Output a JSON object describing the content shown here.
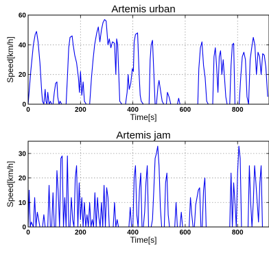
{
  "chart_data": [
    {
      "type": "line",
      "title": "Artemis urban",
      "xlabel": "Time[s]",
      "ylabel": "Speed[km/h]",
      "xlim": [
        0,
        920
      ],
      "ylim": [
        0,
        60
      ],
      "xticks": [
        0,
        200,
        400,
        600,
        800
      ],
      "yticks": [
        0,
        20,
        40,
        60
      ],
      "grid": true,
      "series": [
        {
          "color": "#0000ee",
          "x": [
            0,
            10,
            20,
            27,
            32,
            38,
            45,
            52,
            55,
            60,
            65,
            68,
            72,
            75,
            80,
            85,
            90,
            95,
            100,
            105,
            110,
            113,
            118,
            122,
            128,
            135,
            145,
            150,
            155,
            160,
            168,
            172,
            178,
            185,
            192,
            196,
            200,
            205,
            210,
            215,
            222,
            228,
            235,
            242,
            248,
            254,
            262,
            268,
            274,
            280,
            286,
            292,
            298,
            305,
            310,
            316,
            322,
            330,
            335,
            338,
            342,
            350,
            358,
            365,
            372,
            378,
            382,
            386,
            392,
            398,
            402,
            405,
            410,
            418,
            424,
            428,
            432,
            440,
            448,
            456,
            462,
            466,
            470,
            475,
            485,
            490,
            496,
            500,
            505,
            512,
            518,
            524,
            528,
            532,
            538,
            545,
            552,
            560,
            565,
            570,
            575,
            580,
            585,
            590,
            595,
            600,
            606,
            610,
            615,
            620,
            625,
            630,
            635,
            640,
            648,
            652,
            658,
            664,
            670,
            676,
            682,
            688,
            695,
            700,
            705,
            710,
            715,
            720,
            725,
            730,
            735,
            740,
            745,
            750,
            755,
            760,
            765,
            770,
            775,
            780,
            785,
            790,
            796,
            802,
            806,
            812,
            818,
            824,
            830,
            836,
            842,
            848,
            854,
            860,
            866,
            872,
            878,
            884,
            890,
            896,
            902,
            908,
            915
          ],
          "y": [
            0,
            22,
            40,
            47,
            49,
            42,
            28,
            8,
            2,
            0,
            10,
            2,
            0,
            8,
            0,
            2,
            0,
            0,
            8,
            14,
            15,
            5,
            0,
            2,
            0,
            0,
            0,
            18,
            38,
            45,
            46,
            40,
            33,
            28,
            18,
            8,
            22,
            6,
            15,
            2,
            0,
            0,
            0,
            18,
            30,
            40,
            48,
            52,
            42,
            50,
            55,
            57,
            56,
            40,
            44,
            38,
            42,
            41,
            20,
            44,
            40,
            2,
            0,
            0,
            0,
            8,
            20,
            10,
            14,
            24,
            22,
            42,
            47,
            48,
            20,
            6,
            2,
            0,
            0,
            0,
            0,
            30,
            40,
            43,
            0,
            0,
            12,
            16,
            10,
            2,
            0,
            0,
            0,
            8,
            5,
            0,
            0,
            0,
            0,
            0,
            4,
            0,
            0,
            0,
            0,
            0,
            0,
            0,
            0,
            0,
            0,
            0,
            0,
            0,
            0,
            24,
            38,
            42,
            26,
            18,
            2,
            0,
            0,
            0,
            0,
            32,
            38,
            25,
            8,
            32,
            36,
            20,
            30,
            18,
            5,
            0,
            0,
            0,
            26,
            40,
            41,
            0,
            0,
            0,
            0,
            18,
            32,
            35,
            30,
            5,
            0,
            30,
            38,
            45,
            40,
            20,
            35,
            32,
            20,
            34,
            33,
            25,
            5
          ]
        }
      ]
    },
    {
      "type": "line",
      "title": "Artemis jam",
      "xlabel": "Time[s]",
      "ylabel": "Speed[km/h]",
      "xlim": [
        0,
        920
      ],
      "ylim": [
        0,
        35
      ],
      "xticks": [
        0,
        200,
        400,
        600,
        800
      ],
      "yticks": [
        0,
        10,
        20,
        30
      ],
      "grid": true,
      "series": [
        {
          "color": "#0000ee",
          "x": [
            0,
            4,
            8,
            12,
            20,
            25,
            30,
            35,
            45,
            50,
            55,
            60,
            65,
            70,
            75,
            80,
            85,
            90,
            95,
            100,
            105,
            110,
            115,
            120,
            125,
            130,
            135,
            140,
            145,
            150,
            155,
            160,
            165,
            170,
            175,
            180,
            185,
            190,
            195,
            200,
            205,
            210,
            215,
            220,
            225,
            230,
            235,
            240,
            245,
            250,
            255,
            260,
            265,
            270,
            275,
            280,
            285,
            290,
            295,
            300,
            305,
            310,
            315,
            320,
            325,
            330,
            335,
            340,
            345,
            350,
            355,
            360,
            365,
            370,
            375,
            380,
            385,
            390,
            395,
            400,
            405,
            410,
            415,
            420,
            425,
            430,
            435,
            440,
            445,
            450,
            455,
            460,
            465,
            470,
            475,
            480,
            485,
            490,
            495,
            500,
            505,
            510,
            515,
            520,
            525,
            530,
            535,
            540,
            545,
            550,
            555,
            560,
            565,
            570,
            575,
            580,
            585,
            590,
            595,
            600,
            605,
            610,
            615,
            620,
            625,
            630,
            635,
            640,
            645,
            650,
            655,
            660,
            665,
            670,
            675,
            680,
            685,
            690,
            695,
            700,
            705,
            710,
            715,
            720,
            725,
            730,
            735,
            740,
            745,
            750,
            755,
            760,
            765,
            770,
            775,
            780,
            785,
            790,
            795,
            800,
            805,
            810,
            815,
            820,
            825,
            830,
            835,
            840,
            845,
            850,
            855,
            860,
            865,
            870,
            875,
            880,
            885,
            890,
            895,
            900,
            905,
            910
          ],
          "y": [
            0,
            15,
            0,
            2,
            0,
            12,
            0,
            6,
            0,
            0,
            0,
            5,
            0,
            0,
            0,
            17,
            0,
            0,
            14,
            0,
            0,
            23,
            14,
            0,
            28,
            29,
            0,
            12,
            0,
            29,
            0,
            0,
            12,
            3,
            0,
            20,
            25,
            0,
            18,
            3,
            12,
            0,
            10,
            0,
            5,
            0,
            10,
            0,
            3,
            0,
            14,
            0,
            12,
            4,
            0,
            10,
            0,
            17,
            0,
            16,
            12,
            0,
            0,
            0,
            0,
            10,
            0,
            3,
            0,
            0,
            0,
            0,
            0,
            0,
            0,
            0,
            0,
            8,
            0,
            0,
            20,
            25,
            5,
            0,
            15,
            22,
            0,
            0,
            6,
            18,
            25,
            0,
            0,
            0,
            3,
            15,
            28,
            30,
            33,
            25,
            8,
            0,
            0,
            0,
            18,
            22,
            5,
            0,
            0,
            0,
            0,
            0,
            10,
            0,
            0,
            0,
            6,
            0,
            0,
            0,
            0,
            0,
            0,
            12,
            5,
            0,
            0,
            9,
            12,
            15,
            16,
            0,
            0,
            15,
            20,
            0,
            0,
            0,
            0,
            0,
            0,
            0,
            0,
            0,
            0,
            0,
            0,
            0,
            0,
            0,
            0,
            0,
            0,
            0,
            22,
            0,
            18,
            10,
            0,
            22,
            33,
            28,
            0,
            0,
            0,
            0,
            0,
            0,
            25,
            10,
            0,
            10,
            25,
            18,
            10,
            2,
            18,
            25,
            0,
            0,
            0,
            0
          ]
        }
      ]
    }
  ]
}
